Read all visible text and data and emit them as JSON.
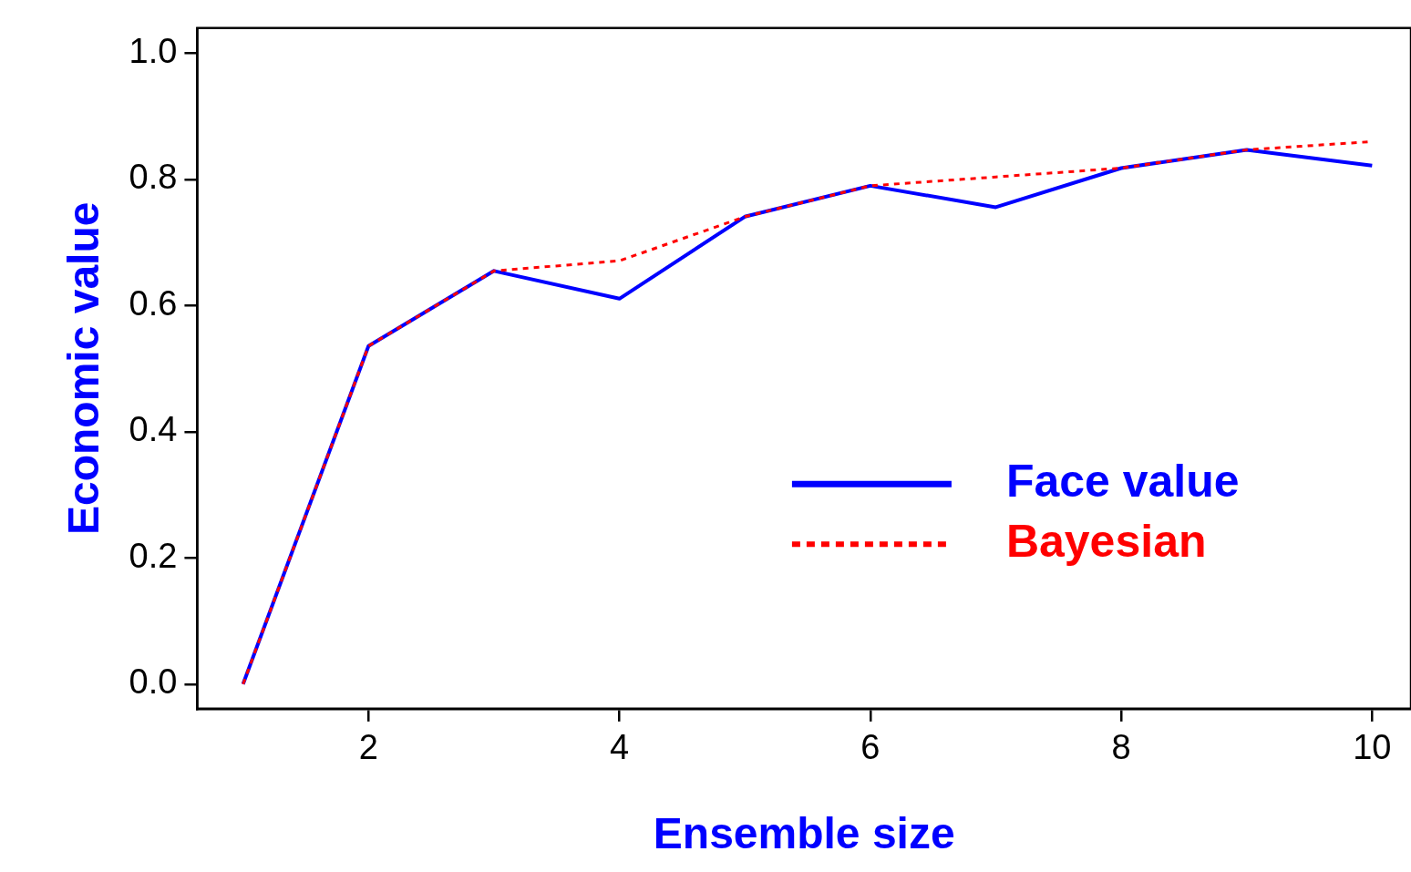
{
  "chart_data": {
    "type": "line",
    "xlabel": "Ensemble size",
    "ylabel": "Economic value",
    "x": [
      1,
      2,
      3,
      4,
      5,
      6,
      7,
      8,
      9,
      10
    ],
    "series": [
      {
        "name": "Face value",
        "color": "#0000ff",
        "line_style": "solid",
        "values": [
          0.0,
          0.536,
          0.655,
          0.611,
          0.741,
          0.79,
          0.756,
          0.818,
          0.847,
          0.822
        ]
      },
      {
        "name": "Bayesian",
        "color": "#ff0000",
        "line_style": "dotted",
        "values": [
          0.0,
          0.536,
          0.655,
          0.671,
          0.741,
          0.79,
          0.804,
          0.818,
          0.847,
          0.86
        ]
      }
    ],
    "xlim": [
      0.635,
      10.31
    ],
    "xticks": [
      2,
      4,
      6,
      8,
      10
    ],
    "ylim": [
      -0.039,
      1.04
    ],
    "yticks": [
      {
        "value": 0,
        "label": "0.0"
      },
      0.2,
      0.4,
      0.6,
      0.8,
      {
        "value": 1,
        "label": "1.0"
      }
    ],
    "grid": false,
    "legend": "right",
    "marker": "none"
  }
}
